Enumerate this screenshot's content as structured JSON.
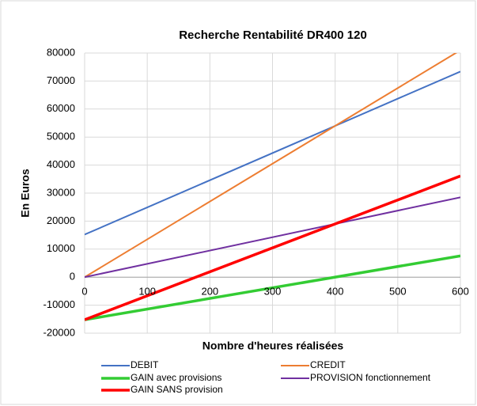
{
  "chart_data": {
    "type": "line",
    "title": "Recherche Rentabilité DR400 120",
    "x_label": "Nombre d'heures réalisées",
    "y_label": "En Euros",
    "xlim": [
      0,
      600
    ],
    "xticks": [
      0,
      100,
      200,
      300,
      400,
      500,
      600
    ],
    "ylim": [
      -20000,
      80000
    ],
    "yticks": [
      -20000,
      -10000,
      0,
      10000,
      20000,
      30000,
      40000,
      50000,
      60000,
      70000,
      80000
    ],
    "grid": true,
    "legend": "bottom",
    "series": [
      {
        "name": "DEBIT",
        "color": "#4472c4",
        "width": 2,
        "x": [
          0,
          600
        ],
        "values": [
          15200,
          73400
        ]
      },
      {
        "name": "CREDIT",
        "color": "#ed7d31",
        "width": 2,
        "x": [
          0,
          600
        ],
        "values": [
          0,
          81000
        ]
      },
      {
        "name": "GAIN avec provisions",
        "color": "#33cc33",
        "width": 3.5,
        "x": [
          0,
          600
        ],
        "values": [
          -15200,
          7600
        ]
      },
      {
        "name": "PROVISION fonctionnement",
        "color": "#7030a0",
        "width": 2,
        "x": [
          0,
          600
        ],
        "values": [
          0,
          28500
        ]
      },
      {
        "name": "GAIN SANS provision",
        "color": "#ff0000",
        "width": 3.5,
        "x": [
          0,
          600
        ],
        "values": [
          -15200,
          36100
        ]
      }
    ]
  }
}
